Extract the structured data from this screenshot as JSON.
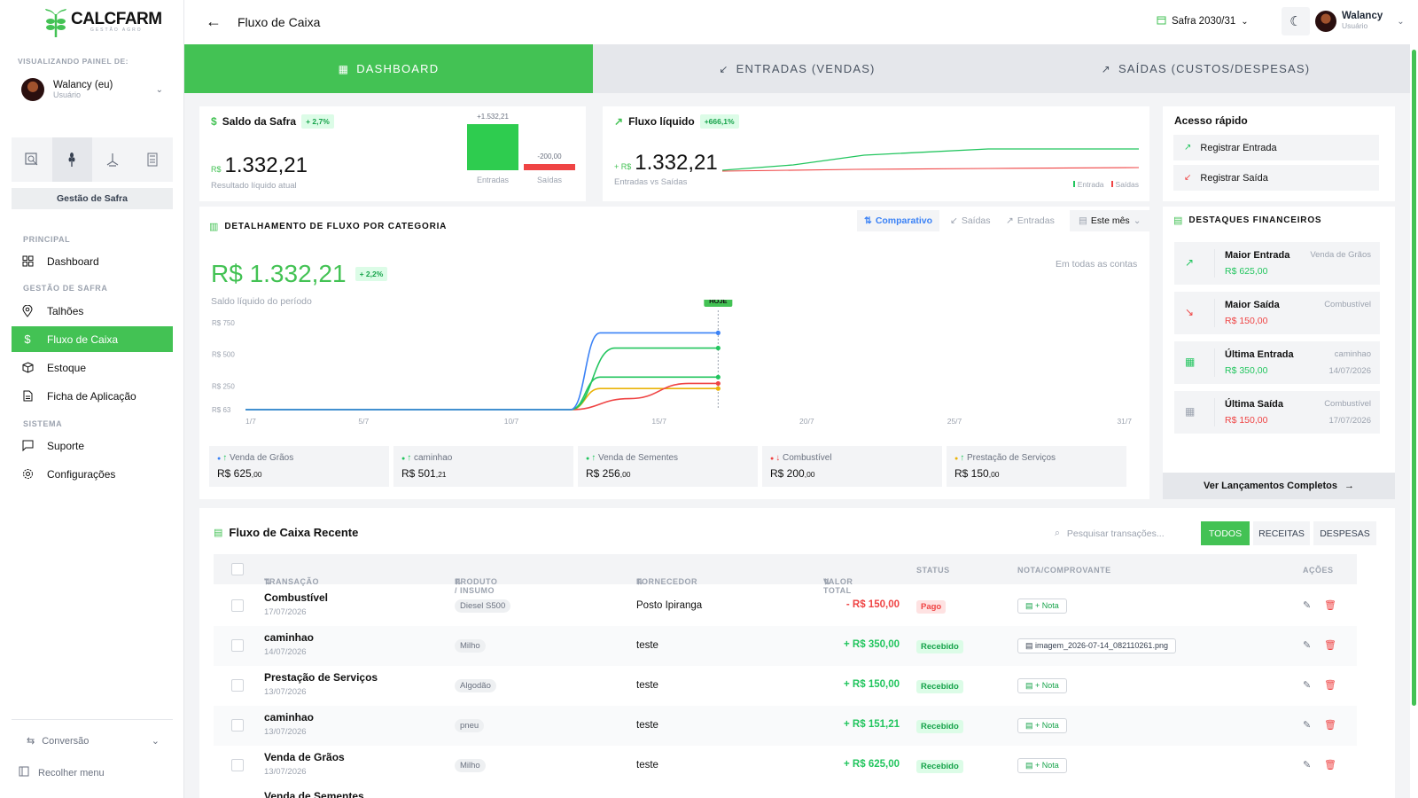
{
  "brand": {
    "name": "CALCFARM",
    "tagline": "GESTÃO AGRO"
  },
  "sidebar": {
    "viewing_label": "VISUALIZANDO PAINEL DE:",
    "user": {
      "name": "Walancy (eu)",
      "role": "Usuário"
    },
    "tool_icons": [
      "search-chart-icon",
      "wheat-icon",
      "sprayer-icon",
      "calculator-icon"
    ],
    "gestao_button": "Gestão de Safra",
    "sections": {
      "principal": "PRINCIPAL",
      "gestao": "GESTÃO DE SAFRA",
      "sistema": "SISTEMA"
    },
    "items": {
      "dashboard": "Dashboard",
      "talhoes": "Talhões",
      "fluxo": "Fluxo de Caixa",
      "estoque": "Estoque",
      "ficha": "Ficha de Aplicação",
      "suporte": "Suporte",
      "config": "Configurações"
    },
    "conversao": "Conversão",
    "recolher": "Recolher menu"
  },
  "header": {
    "title": "Fluxo de Caixa",
    "safra": "Safra 2030/31",
    "user": {
      "name": "Walancy",
      "role": "Usuário"
    }
  },
  "tabs": [
    {
      "label": "DASHBOARD",
      "icon": "grid-icon"
    },
    {
      "label": "ENTRADAS (VENDAS)",
      "icon": "arrow-down-left-icon"
    },
    {
      "label": "SAÍDAS (CUSTOS/DESPESAS)",
      "icon": "arrow-up-right-icon"
    }
  ],
  "saldo": {
    "title": "Saldo da Safra",
    "pct": "+ 2,7%",
    "currency": "R$",
    "value": "1.332,21",
    "caption": "Resultado líquido atual",
    "bars": {
      "entradas_value": "+1.532,21",
      "saidas_value": "-200,00",
      "entradas_label": "Entradas",
      "saidas_label": "Saídas",
      "entradas_num": 1532.21,
      "saidas_num": 200.0
    }
  },
  "fluxo_liquido": {
    "title": "Fluxo líquido",
    "pct": "+666,1%",
    "currency": "+ R$",
    "value": "1.332,21",
    "caption": "Entradas vs Saídas",
    "legend": {
      "entrada": "Entrada",
      "saidas": "Saídas"
    }
  },
  "acesso": {
    "title": "Acesso rápido",
    "registrar_entrada": "Registrar Entrada",
    "registrar_saida": "Registrar Saída"
  },
  "categoria": {
    "title": "DETALHAMENTO DE FLUXO POR CATEGORIA",
    "seg": {
      "comparativo": "Comparativo",
      "saidas": "Saídas",
      "entradas": "Entradas"
    },
    "periodo": "Este mês",
    "big": "R$ 1.332,21",
    "pct": "+ 2,2%",
    "sub": "Saldo líquido do período",
    "contas": "Em todas as contas",
    "hoje": "HOJE",
    "legend": [
      {
        "name": "Venda de Grãos",
        "dir": "↑",
        "value": "R$ 625",
        "cents": ",00",
        "color": "#3b82f6"
      },
      {
        "name": "caminhao",
        "dir": "↑",
        "value": "R$ 501",
        "cents": ",21",
        "color": "#22c55e"
      },
      {
        "name": "Venda de Sementes",
        "dir": "↑",
        "value": "R$ 256",
        "cents": ",00",
        "color": "#22c55e"
      },
      {
        "name": "Combustível",
        "dir": "↓",
        "value": "R$ 200",
        "cents": ",00",
        "color": "#ef4444"
      },
      {
        "name": "Prestação de Serviços",
        "dir": "↑",
        "value": "R$ 150",
        "cents": ",00",
        "color": "#eab308"
      }
    ]
  },
  "chart_data": {
    "type": "line",
    "x": [
      "1/7",
      "5/7",
      "10/7",
      "15/7",
      "20/7",
      "25/7",
      "31/7"
    ],
    "y_ticks": [
      "R$ 750",
      "R$ 500",
      "R$ 250",
      "R$ 63"
    ],
    "ylim": [
      63,
      750
    ],
    "series": [
      {
        "name": "Venda de Grãos",
        "color": "#3b82f6",
        "points": [
          [
            1,
            63
          ],
          [
            12,
            63
          ],
          [
            13,
            670
          ],
          [
            17,
            670
          ]
        ]
      },
      {
        "name": "caminhao",
        "color": "#22c55e",
        "points": [
          [
            1,
            63
          ],
          [
            12,
            63
          ],
          [
            13.5,
            550
          ],
          [
            17,
            550
          ]
        ]
      },
      {
        "name": "Venda de Sementes",
        "color": "#22c55e",
        "points": [
          [
            1,
            63
          ],
          [
            12,
            63
          ],
          [
            13,
            320
          ],
          [
            17,
            320
          ]
        ]
      },
      {
        "name": "Combustível",
        "color": "#ef4444",
        "points": [
          [
            1,
            63
          ],
          [
            12,
            63
          ],
          [
            14,
            150
          ],
          [
            16,
            270
          ],
          [
            17,
            270
          ]
        ]
      },
      {
        "name": "Prestação de Serviços",
        "color": "#eab308",
        "points": [
          [
            1,
            63
          ],
          [
            12,
            63
          ],
          [
            13,
            230
          ],
          [
            17,
            230
          ]
        ]
      }
    ],
    "today": 17
  },
  "destaques": {
    "title": "DESTAQUES FINANCEIROS",
    "items": [
      {
        "title": "Maior Entrada",
        "value": "R$ 625,00",
        "tag": "Venda de Grãos",
        "date": "",
        "icon": "trending-up-icon"
      },
      {
        "title": "Maior Saída",
        "value": "R$ 150,00",
        "tag": "Combustível",
        "date": "",
        "icon": "trending-down-icon"
      },
      {
        "title": "Última Entrada",
        "value": "R$ 350,00",
        "tag": "caminhao",
        "date": "14/07/2026",
        "icon": "calendar-icon"
      },
      {
        "title": "Última Saída",
        "value": "R$ 150,00",
        "tag": "Combustível",
        "date": "17/07/2026",
        "icon": "calendar-icon"
      }
    ],
    "ver": "Ver Lançamentos Completos"
  },
  "recent": {
    "title": "Fluxo de Caixa Recente",
    "search_placeholder": "Pesquisar transações...",
    "filters": {
      "todos": "TODOS",
      "receitas": "RECEITAS",
      "despesas": "DESPESAS"
    },
    "columns": {
      "transacao": "TRANSAÇÃO",
      "produto": "PRODUTO / INSUMO",
      "fornecedor": "FORNECEDOR",
      "valor": "VALOR TOTAL",
      "status": "STATUS",
      "nota": "NOTA/COMPROVANTE",
      "acoes": "AÇÕES"
    },
    "rows": [
      {
        "name": "Combustível",
        "date": "17/07/2026",
        "produto": "Diesel S500",
        "fornecedor": "Posto Ipiranga",
        "valor": "- R$ 150,00",
        "status": "Pago",
        "nota": "+ Nota"
      },
      {
        "name": "caminhao",
        "date": "14/07/2026",
        "produto": "Milho",
        "fornecedor": "teste",
        "valor": "+ R$ 350,00",
        "status": "Recebido",
        "nota": "imagem_2026-07-14_082110261.png"
      },
      {
        "name": "Prestação de Serviços",
        "date": "13/07/2026",
        "produto": "Algodão",
        "fornecedor": "teste",
        "valor": "+ R$ 150,00",
        "status": "Recebido",
        "nota": "+ Nota"
      },
      {
        "name": "caminhao",
        "date": "13/07/2026",
        "produto": "pneu",
        "fornecedor": "teste",
        "valor": "+ R$ 151,21",
        "status": "Recebido",
        "nota": "+ Nota"
      },
      {
        "name": "Venda de Grãos",
        "date": "13/07/2026",
        "produto": "Milho",
        "fornecedor": "teste",
        "valor": "+ R$ 625,00",
        "status": "Recebido",
        "nota": "+ Nota"
      }
    ],
    "next_row_partial": "Venda de Sementes"
  }
}
